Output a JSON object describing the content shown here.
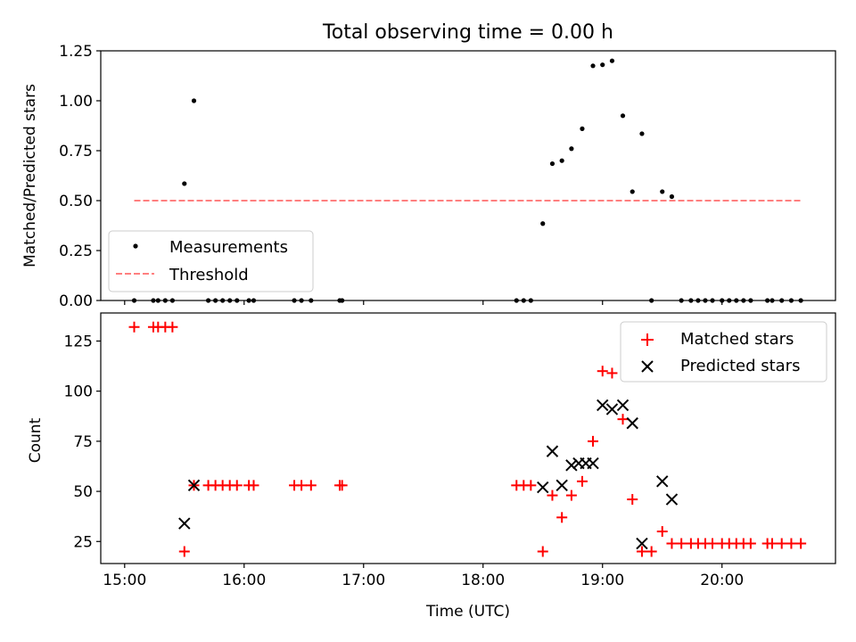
{
  "chart_data": [
    {
      "type": "scatter",
      "title": "Total observing time = 0.00 h",
      "xlabel": "",
      "ylabel": "Matched/Predicted stars",
      "xlim": [
        14.8,
        20.95
      ],
      "ylim": [
        0,
        1.25
      ],
      "yticks": [
        0.0,
        0.25,
        0.5,
        0.75,
        1.0,
        1.25
      ],
      "ytick_labels": [
        "0.00",
        "0.25",
        "0.50",
        "0.75",
        "1.00",
        "1.25"
      ],
      "xticks": [
        15,
        16,
        17,
        18,
        19,
        20
      ],
      "legend": {
        "placement": "lower-left",
        "entries": [
          "Measurements",
          "Threshold"
        ]
      },
      "series": [
        {
          "name": "Measurements",
          "color": "#000000",
          "marker": "dot",
          "x": [
            15.08,
            15.24,
            15.28,
            15.34,
            15.4,
            15.5,
            15.58,
            15.7,
            15.76,
            15.82,
            15.88,
            15.94,
            16.04,
            16.08,
            16.42,
            16.48,
            16.56,
            16.8,
            16.82,
            18.28,
            18.34,
            18.4,
            18.5,
            18.58,
            18.66,
            18.74,
            18.83,
            18.92,
            19.0,
            19.08,
            19.17,
            19.25,
            19.33,
            19.41,
            19.5,
            19.58,
            19.66,
            19.74,
            19.8,
            19.86,
            19.92,
            20.0,
            20.06,
            20.12,
            20.18,
            20.24,
            20.38,
            20.42,
            20.5,
            20.58,
            20.66
          ],
          "y": [
            0,
            0,
            0,
            0,
            0,
            0.585,
            1.0,
            0,
            0,
            0,
            0,
            0,
            0,
            0,
            0,
            0,
            0,
            0,
            0,
            0,
            0,
            0,
            0.385,
            0.685,
            0.7,
            0.76,
            0.86,
            1.175,
            1.18,
            1.2,
            0.925,
            0.545,
            0.835,
            0,
            0.545,
            0.52,
            0,
            0,
            0,
            0,
            0,
            0,
            0,
            0,
            0,
            0,
            0,
            0,
            0,
            0,
            0
          ]
        },
        {
          "name": "Threshold",
          "color": "#ff7f7f",
          "style": "dashed",
          "x": [
            15.08,
            20.66
          ],
          "y": [
            0.5,
            0.5
          ]
        }
      ]
    },
    {
      "type": "scatter",
      "title": "",
      "xlabel": "Time (UTC)",
      "ylabel": "Count",
      "xlim": [
        14.8,
        20.95
      ],
      "ylim": [
        14,
        139
      ],
      "yticks": [
        25,
        50,
        75,
        100,
        125
      ],
      "ytick_labels": [
        "25",
        "50",
        "75",
        "100",
        "125"
      ],
      "xticks": [
        15,
        16,
        17,
        18,
        19,
        20
      ],
      "xtick_labels": [
        "15:00",
        "16:00",
        "17:00",
        "18:00",
        "19:00",
        "20:00"
      ],
      "legend": {
        "placement": "top-right",
        "entries": [
          "Matched stars",
          "Predicted stars"
        ]
      },
      "series": [
        {
          "name": "Matched stars",
          "color": "#ff0000",
          "marker": "plus",
          "x": [
            15.08,
            15.24,
            15.28,
            15.34,
            15.4,
            15.5,
            15.58,
            15.7,
            15.76,
            15.82,
            15.88,
            15.94,
            16.04,
            16.08,
            16.42,
            16.48,
            16.56,
            16.8,
            16.82,
            18.28,
            18.34,
            18.4,
            18.5,
            18.58,
            18.66,
            18.74,
            18.83,
            18.92,
            19.0,
            19.08,
            19.17,
            19.25,
            19.33,
            19.41,
            19.5,
            19.58,
            19.66,
            19.74,
            19.8,
            19.86,
            19.92,
            20.0,
            20.06,
            20.12,
            20.18,
            20.24,
            20.38,
            20.42,
            20.5,
            20.58,
            20.66
          ],
          "y": [
            132,
            132,
            132,
            132,
            132,
            20,
            53,
            53,
            53,
            53,
            53,
            53,
            53,
            53,
            53,
            53,
            53,
            53,
            53,
            53,
            53,
            53,
            20,
            48,
            37,
            48,
            55,
            75,
            110,
            109,
            86,
            46,
            20,
            20,
            30,
            24,
            24,
            24,
            24,
            24,
            24,
            24,
            24,
            24,
            24,
            24,
            24,
            24,
            24,
            24,
            24
          ]
        },
        {
          "name": "Predicted stars",
          "color": "#000000",
          "marker": "x",
          "x": [
            15.5,
            15.58,
            18.5,
            18.58,
            18.66,
            18.74,
            18.8,
            18.86,
            18.92,
            19.0,
            19.08,
            19.17,
            19.25,
            19.33,
            19.5,
            19.58
          ],
          "y": [
            34,
            53,
            52,
            70,
            53,
            63,
            64,
            64,
            64,
            93,
            91,
            93,
            84,
            24,
            55,
            46
          ]
        }
      ]
    }
  ]
}
